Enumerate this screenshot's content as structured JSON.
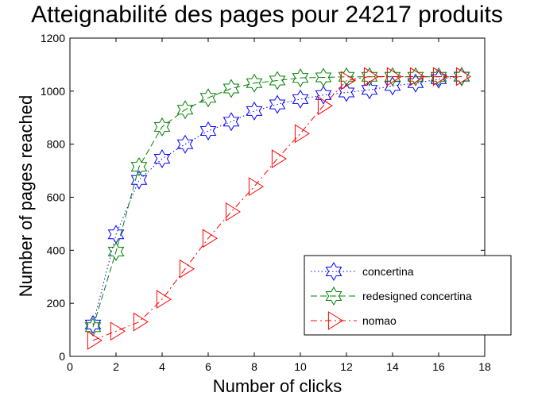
{
  "chart_data": {
    "type": "line",
    "title": "Atteignabilité des pages pour 24217 produits",
    "xlabel": "Number of clicks",
    "ylabel": "Number of pages reached",
    "xlim": [
      0,
      18
    ],
    "ylim": [
      0,
      1200
    ],
    "xticks": [
      0,
      2,
      4,
      6,
      8,
      10,
      12,
      14,
      16,
      18
    ],
    "yticks": [
      0,
      200,
      400,
      600,
      800,
      1000,
      1200
    ],
    "grid": false,
    "legend_position": "bottom-right",
    "series": [
      {
        "name": "concertina",
        "color": "#0000ff",
        "line_style": "dotted",
        "marker": "hexagram",
        "x": [
          1,
          2,
          3,
          4,
          5,
          6,
          7,
          8,
          9,
          10,
          11,
          12,
          13,
          14,
          15,
          16,
          17
        ],
        "y": [
          120,
          460,
          665,
          745,
          800,
          850,
          885,
          925,
          950,
          970,
          985,
          995,
          1005,
          1020,
          1030,
          1045,
          1055
        ]
      },
      {
        "name": "redesigned concertina",
        "color": "#008000",
        "line_style": "dashed",
        "marker": "hexagram",
        "x": [
          1,
          2,
          3,
          4,
          5,
          6,
          7,
          8,
          9,
          10,
          11,
          12,
          13,
          14,
          15,
          16,
          17
        ],
        "y": [
          110,
          395,
          715,
          865,
          930,
          975,
          1010,
          1030,
          1040,
          1050,
          1052,
          1054,
          1054,
          1054,
          1054,
          1054,
          1054
        ]
      },
      {
        "name": "nomao",
        "color": "#ff0000",
        "line_style": "dashdot",
        "marker": "triangle-right",
        "x": [
          1,
          2,
          3,
          4,
          5,
          6,
          7,
          8,
          9,
          10,
          11,
          12,
          13,
          14,
          15,
          16,
          17
        ],
        "y": [
          60,
          95,
          130,
          215,
          330,
          445,
          545,
          640,
          745,
          840,
          945,
          1040,
          1055,
          1055,
          1055,
          1055,
          1055
        ]
      }
    ]
  }
}
